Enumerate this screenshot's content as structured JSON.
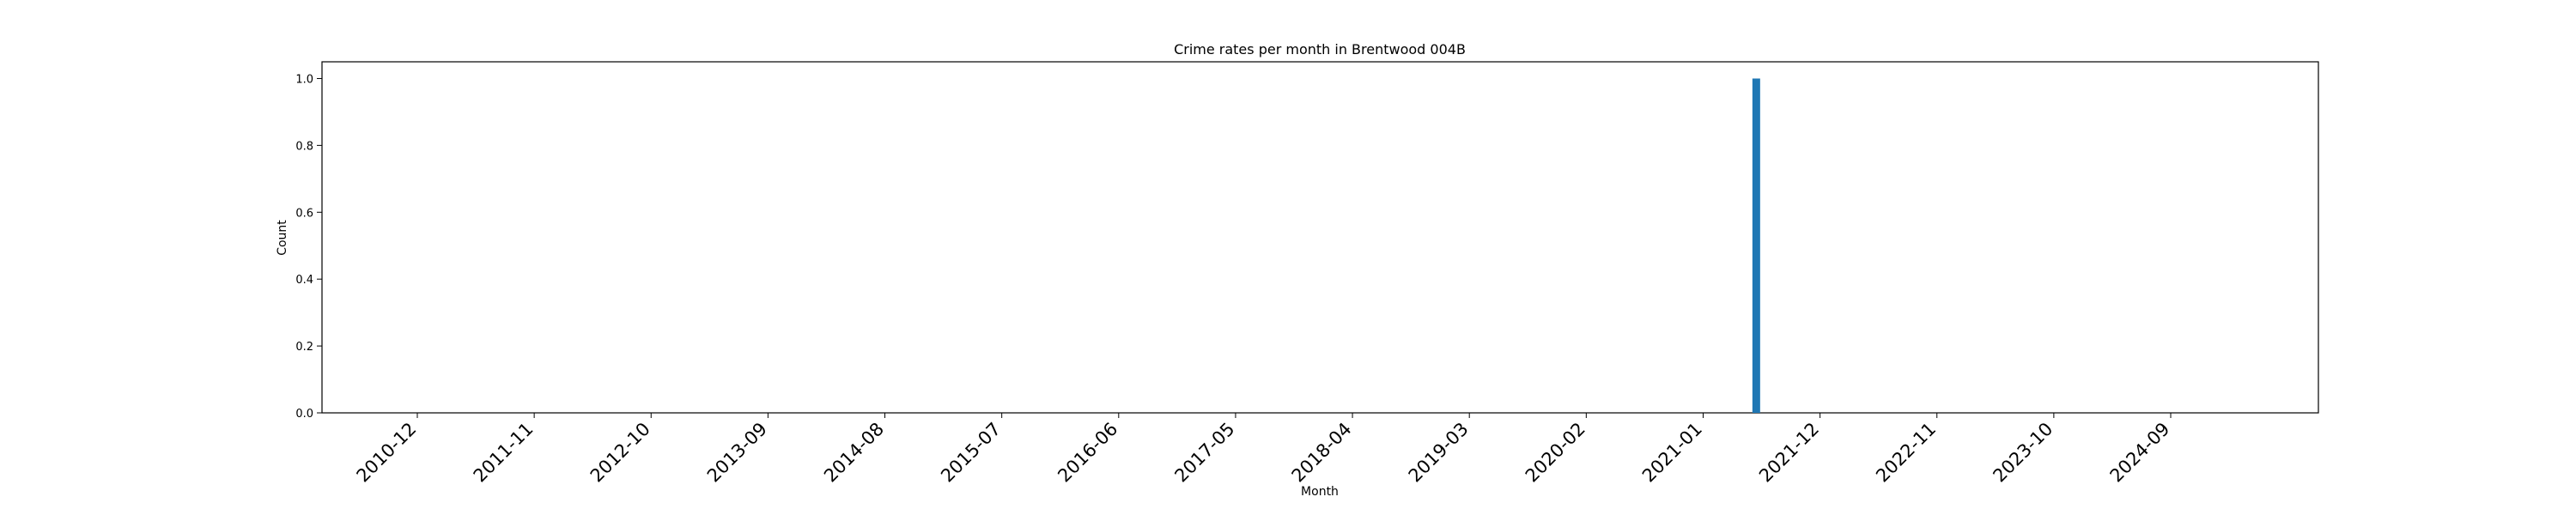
{
  "chart_data": {
    "type": "bar",
    "title": "Crime rates per month in Brentwood 004B",
    "xlabel": "Month",
    "ylabel": "Count",
    "ylim": [
      0,
      1.05
    ],
    "yticks": [
      "0.0",
      "0.2",
      "0.4",
      "0.6",
      "0.8",
      "1.0"
    ],
    "xtick_labels": [
      "2010-12",
      "2011-11",
      "2012-10",
      "2013-09",
      "2014-08",
      "2015-07",
      "2016-06",
      "2017-05",
      "2018-04",
      "2019-03",
      "2020-02",
      "2021-01",
      "2021-12",
      "2022-11",
      "2023-10",
      "2024-09"
    ],
    "bars": [
      {
        "category": "2021-06",
        "value": 1
      }
    ],
    "bar_color": "#1f77b4",
    "grid": false,
    "legend": "none"
  }
}
